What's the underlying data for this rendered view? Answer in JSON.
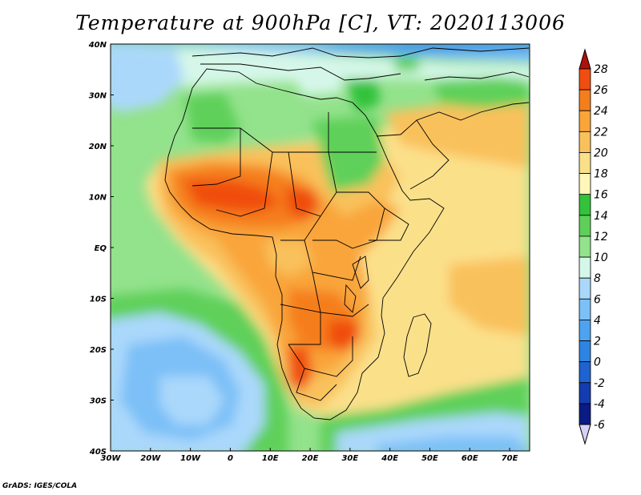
{
  "title": "Temperature at 900hPa [C], VT: 2020113006",
  "footer": "GrADS: IGES/COLA",
  "map": {
    "lon_ticks": [
      "30W",
      "20W",
      "10W",
      "0",
      "10E",
      "20E",
      "30E",
      "40E",
      "50E",
      "60E",
      "70E"
    ],
    "lat_ticks": [
      "40N",
      "30N",
      "20N",
      "10N",
      "EQ",
      "10S",
      "20S",
      "30S",
      "40S"
    ]
  },
  "colorbar": {
    "labels": [
      "28",
      "26",
      "24",
      "22",
      "20",
      "18",
      "16",
      "14",
      "12",
      "10",
      "8",
      "6",
      "4",
      "2",
      "0",
      "-2",
      "-4",
      "-6"
    ],
    "colors": [
      "#d71f00",
      "#f04e10",
      "#f57e1c",
      "#f9a53a",
      "#f9c15c",
      "#fbe08a",
      "#fff6ba",
      "#33c23a",
      "#5ed05a",
      "#93e28c",
      "#d5f7e9",
      "#aad8fb",
      "#7cc0f7",
      "#4ea3f0",
      "#2e84e3",
      "#1f63d1",
      "#143cb1",
      "#0a1b84"
    ],
    "top_arrow_color": "#b0100a",
    "bottom_arrow_color": "#d6d0fa"
  }
}
